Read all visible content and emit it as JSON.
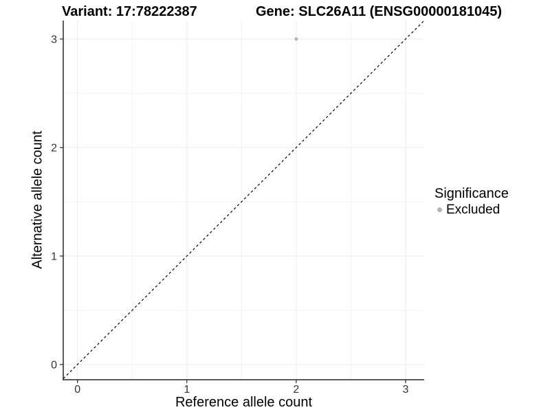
{
  "chart_data": {
    "type": "scatter",
    "titles": {
      "left": "Variant: 17:78222387",
      "right": "Gene: SLC26A11 (ENSG00000181045)"
    },
    "xlabel": "Reference allele count",
    "ylabel": "Alternative allele count",
    "xlim": [
      -0.13,
      3.17
    ],
    "ylim": [
      -0.14,
      3.17
    ],
    "xticks": [
      0,
      1,
      2,
      3
    ],
    "yticks": [
      0,
      1,
      2,
      3
    ],
    "minor_xticks": [
      0.5,
      1.5,
      2.5
    ],
    "minor_yticks": [
      0.5,
      1.5,
      2.5
    ],
    "grid": true,
    "identity_line": {
      "style": "dashed",
      "color": "#000000",
      "equation": "y = x"
    },
    "series": [
      {
        "name": "Excluded",
        "color": "#b3b3b3",
        "points": [
          {
            "x": 2,
            "y": 3
          }
        ]
      }
    ],
    "legend": {
      "title": "Significance",
      "position": "right",
      "entries": [
        {
          "label": "Excluded",
          "color": "#b3b3b3"
        }
      ]
    },
    "colors": {
      "background": "#ffffff",
      "major_grid": "#ebebeb",
      "minor_grid": "#f2f2f2",
      "axis": "#262626",
      "tick_label": "#333333"
    }
  }
}
